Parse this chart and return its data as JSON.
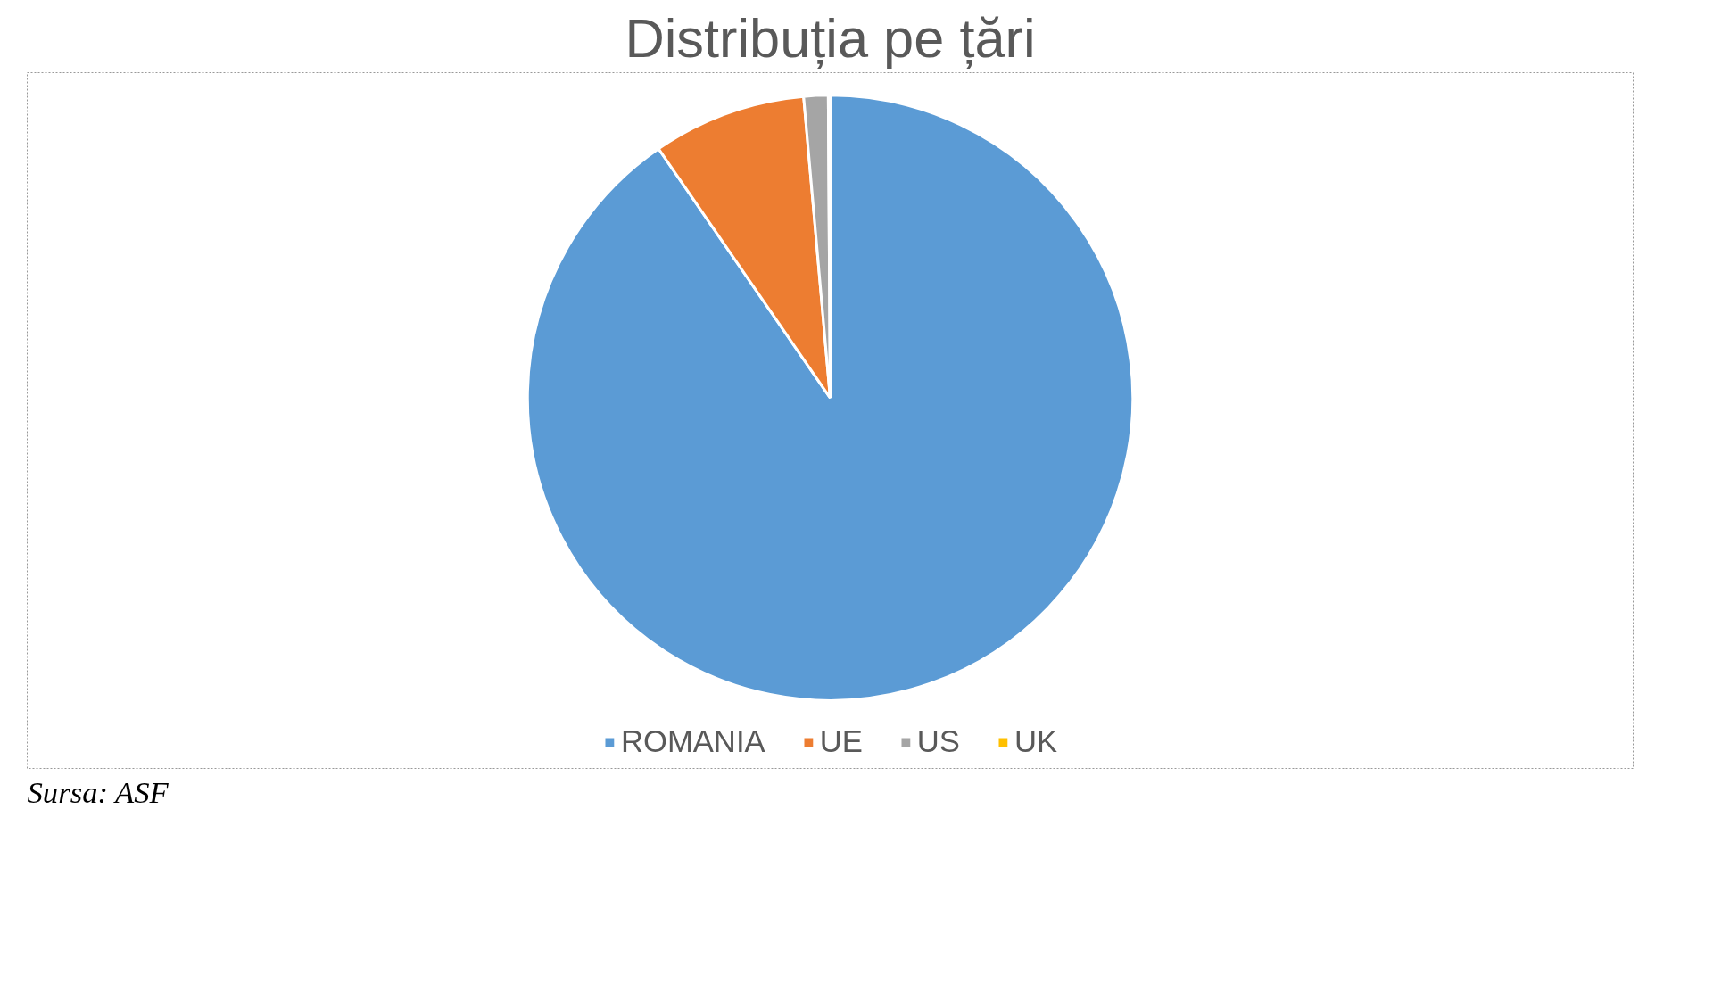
{
  "chart_data": {
    "type": "pie",
    "title": "Distribuția pe țări",
    "categories": [
      "ROMANIA",
      "UE",
      "US",
      "UK"
    ],
    "values": [
      90.4,
      8.2,
      1.3,
      0.1
    ],
    "colors": [
      "#5b9bd5",
      "#ed7d31",
      "#a5a5a5",
      "#ffc000"
    ],
    "legend": "bottom",
    "annotations": [
      "Sursa: ASF"
    ]
  }
}
